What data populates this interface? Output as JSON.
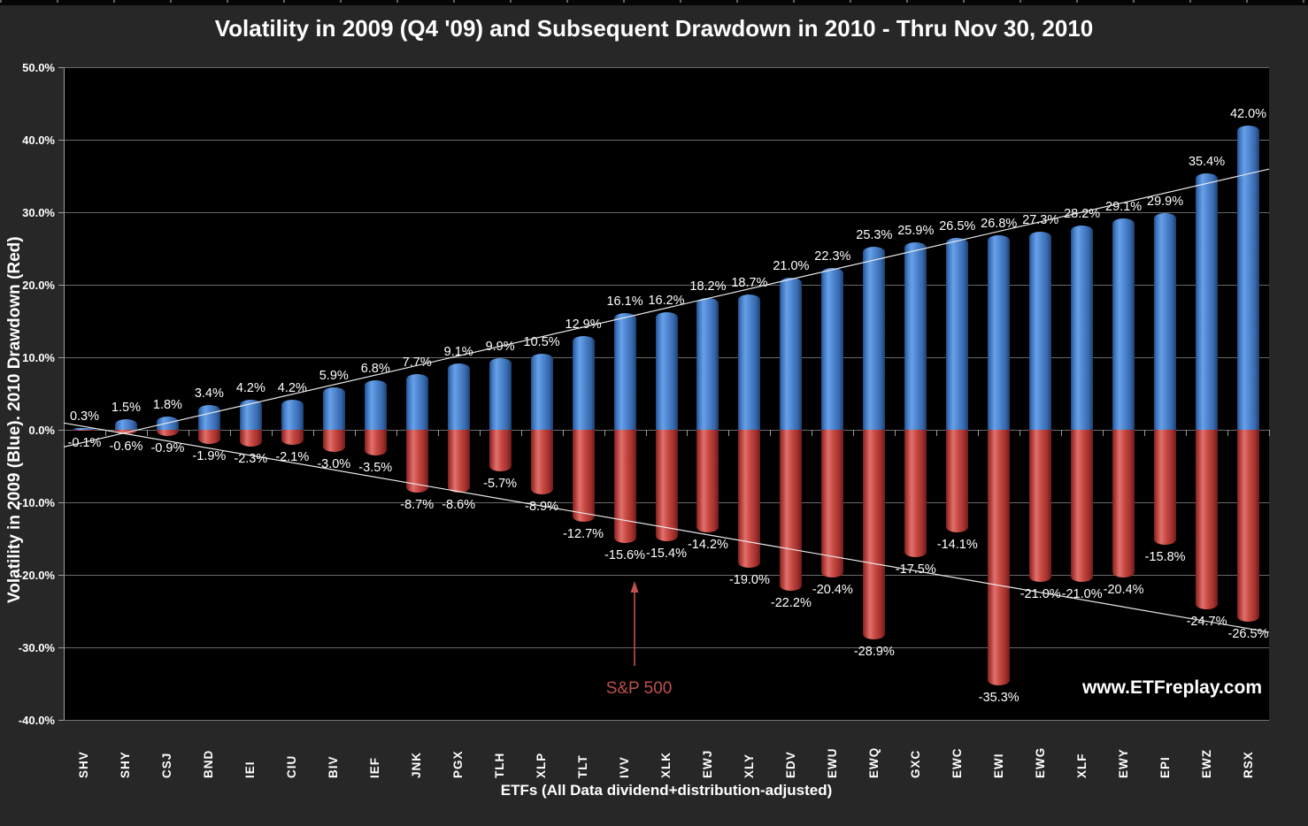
{
  "title": "Volatility in 2009 (Q4 '09) and Subsequent Drawdown in 2010 - Thru Nov 30, 2010",
  "colors": {
    "page_background": "#272727",
    "plot_background": "#000000",
    "gridline": "#8c8c8c",
    "text": "#ffffff",
    "volatility_bar": "#4a80c8",
    "drawdown_bar": "#c2413d",
    "annotation": "#bf504d",
    "trendline": "#e8e8e8"
  },
  "chart_data": {
    "type": "bar",
    "categories": [
      "SHV",
      "SHY",
      "CSJ",
      "BND",
      "IEI",
      "CIU",
      "BIV",
      "IEF",
      "JNK",
      "PGX",
      "TLH",
      "XLP",
      "TLT",
      "IVV",
      "XLK",
      "EWJ",
      "XLY",
      "EDV",
      "EWU",
      "EWQ",
      "GXC",
      "EWC",
      "EWI",
      "EWG",
      "XLF",
      "EWY",
      "EPI",
      "EWZ",
      "RSX"
    ],
    "series": [
      {
        "name": "Volatility in 2009 (Blue)",
        "color": "#4a80c8",
        "values": [
          0.3,
          1.5,
          1.8,
          3.4,
          4.2,
          4.2,
          5.9,
          6.8,
          7.7,
          9.1,
          9.9,
          10.5,
          12.9,
          16.1,
          16.2,
          18.2,
          18.7,
          21.0,
          22.3,
          25.3,
          25.9,
          26.5,
          26.8,
          27.3,
          28.2,
          29.1,
          29.9,
          35.4,
          42.0
        ]
      },
      {
        "name": "2010 Drawdown (Red)",
        "color": "#c2413d",
        "values": [
          -0.1,
          -0.6,
          -0.9,
          -1.9,
          -2.3,
          -2.1,
          -3.0,
          -3.5,
          -8.7,
          -8.6,
          -5.7,
          -8.9,
          -12.7,
          -15.6,
          -15.4,
          -14.2,
          -19.0,
          -22.2,
          -20.4,
          -28.9,
          -17.5,
          -14.1,
          -35.3,
          -21.0,
          -21.0,
          -20.4,
          -15.8,
          -24.7,
          -26.5
        ]
      }
    ],
    "title": "Volatility in 2009 (Q4 '09) and Subsequent Drawdown in 2010 - Thru Nov 30, 2010",
    "xlabel": "ETFs  (All Data dividend+distribution-adjusted)",
    "ylabel": "Volatility in 2009 (Blue).  2010 Drawdown (Red)",
    "ylim": [
      -40,
      50
    ],
    "ytick_step": 10,
    "ytick_format": "percent_one_decimal",
    "grid": true,
    "legend": "none",
    "trendlines": [
      {
        "series": "Volatility in 2009 (Blue)",
        "type": "linear"
      },
      {
        "series": "2010 Drawdown (Red)",
        "type": "linear"
      }
    ],
    "annotation": {
      "text": "S&P 500",
      "category": "IVV"
    },
    "watermark": "www.ETFreplay.com"
  }
}
